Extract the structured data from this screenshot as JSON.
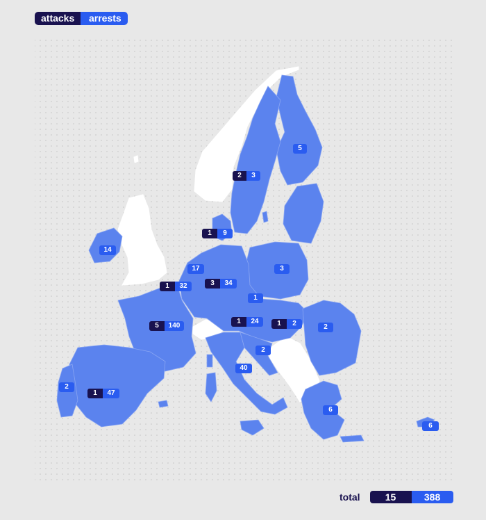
{
  "legend": {
    "attacks": "attacks",
    "arrests": "arrests"
  },
  "colors": {
    "attacks": "#19124f",
    "arrests": "#2a5cf0",
    "eu_fill": "#5b83ee",
    "non_eu_fill": "#ffffff",
    "background": "#e8e8e8"
  },
  "countries": [
    {
      "name": "finland",
      "attacks": null,
      "arrests": "5"
    },
    {
      "name": "sweden",
      "attacks": "2",
      "arrests": "3"
    },
    {
      "name": "denmark",
      "attacks": "1",
      "arrests": "9"
    },
    {
      "name": "ireland",
      "attacks": null,
      "arrests": "14"
    },
    {
      "name": "netherlands",
      "attacks": null,
      "arrests": "17"
    },
    {
      "name": "belgium",
      "attacks": "1",
      "arrests": "32"
    },
    {
      "name": "germany",
      "attacks": "3",
      "arrests": "34"
    },
    {
      "name": "poland",
      "attacks": null,
      "arrests": "3"
    },
    {
      "name": "czechia",
      "attacks": null,
      "arrests": "1"
    },
    {
      "name": "austria",
      "attacks": "1",
      "arrests": "24"
    },
    {
      "name": "hungary",
      "attacks": "1",
      "arrests": "2"
    },
    {
      "name": "romania",
      "attacks": null,
      "arrests": "2"
    },
    {
      "name": "france",
      "attacks": "5",
      "arrests": "140"
    },
    {
      "name": "croatia",
      "attacks": null,
      "arrests": "2"
    },
    {
      "name": "italy",
      "attacks": null,
      "arrests": "40"
    },
    {
      "name": "portugal",
      "attacks": null,
      "arrests": "2"
    },
    {
      "name": "spain",
      "attacks": "1",
      "arrests": "47"
    },
    {
      "name": "greece",
      "attacks": null,
      "arrests": "6"
    },
    {
      "name": "cyprus",
      "attacks": null,
      "arrests": "6"
    }
  ],
  "total": {
    "label": "total",
    "attacks": "15",
    "arrests": "388"
  }
}
